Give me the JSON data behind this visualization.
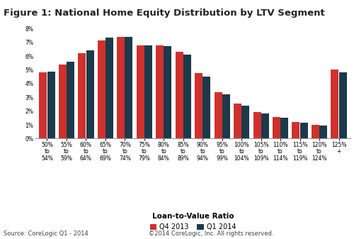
{
  "title": "Figure 1: National Home Equity Distribution by LTV Segment",
  "xlabel": "Loan-to-Value Ratio",
  "categories": [
    "50%\nto\n54%",
    "55%\nto\n59%",
    "60%\nto\n64%",
    "65%\nto\n69%",
    "70%\nto\n74%",
    "75%\nto\n79%",
    "80%\nto\n84%",
    "85%\nto\n89%",
    "90%\nto\n94%",
    "95%\nto\n99%",
    "100%\nto\n104%",
    "105%\nto\n109%",
    "110%\nto\n114%",
    "115%\nto\n119%",
    "120%\nto\n124%",
    "125%\n+\n "
  ],
  "q4_2013": [
    4.8,
    5.4,
    6.2,
    7.15,
    7.4,
    6.8,
    6.8,
    6.3,
    4.75,
    3.4,
    2.55,
    1.95,
    1.55,
    1.2,
    1.0,
    5.05
  ],
  "q1_2014": [
    4.9,
    5.6,
    6.4,
    7.35,
    7.4,
    6.8,
    6.75,
    6.1,
    4.5,
    3.2,
    2.4,
    1.85,
    1.5,
    1.15,
    0.95,
    4.8
  ],
  "color_q4": "#D0312D",
  "color_q1": "#1B3A4B",
  "ylim": [
    0,
    8
  ],
  "yticks": [
    0,
    1,
    2,
    3,
    4,
    5,
    6,
    7,
    8
  ],
  "ytick_labels": [
    "0%",
    "1%",
    "2%",
    "3%",
    "4%",
    "5%",
    "6%",
    "7%",
    "8%"
  ],
  "legend_q4": "Q4 2013",
  "legend_q1": "Q1 2014",
  "source_text": "Source: CoreLogic Q1 - 2014",
  "copyright_text": "©2014 CoreLogic, Inc. All rights reserved.",
  "background_color": "#ffffff",
  "title_fontsize": 9.5,
  "tick_fontsize": 5.5,
  "xlabel_fontsize": 7.5,
  "legend_fontsize": 7.0,
  "source_fontsize": 6.0
}
